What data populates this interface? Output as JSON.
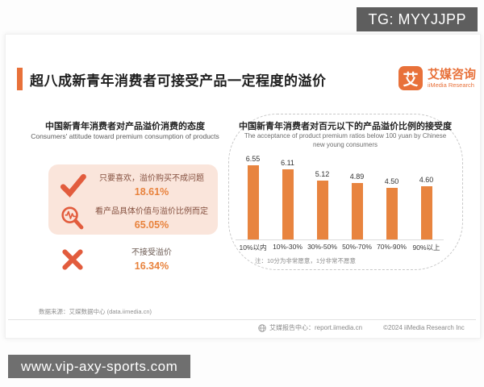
{
  "page": {
    "tg_badge": "TG: MYYJJPP",
    "watermark": "www.vip-axy-sports.com"
  },
  "header": {
    "title": "超八成新青年消费者可接受产品一定程度的溢价",
    "logo": {
      "glyph": "艾",
      "name_cn": "艾媒咨询",
      "name_en": "iiMedia Research"
    }
  },
  "left_panel": {
    "title": "中国新青年消费者对产品溢价消费的态度",
    "subtitle": "Consumers' attitude toward premium consumption of products",
    "items": [
      {
        "icon": "check-icon",
        "label": "只要喜欢，溢价购买不成问题",
        "value": "18.61%"
      },
      {
        "icon": "magnifier-pulse-icon",
        "label": "看产品具体价值与溢价比例而定",
        "value": "65.05%"
      },
      {
        "icon": "x-icon",
        "label": "不接受溢价",
        "value": "16.34%"
      }
    ],
    "source": "数据来源：艾媒数据中心 (data.iimedia.cn)"
  },
  "chart_data": {
    "type": "bar",
    "title": "中国新青年消费者对百元以下的产品溢价比例的接受度",
    "subtitle": "The acceptance of product premium ratios below 100 yuan by Chinese new young consumers",
    "categories": [
      "10%以内",
      "10%-30%",
      "30%-50%",
      "50%-70%",
      "70%-90%",
      "90%以上"
    ],
    "values": [
      6.55,
      6.11,
      5.12,
      4.89,
      4.5,
      4.6
    ],
    "value_labels": [
      "6.55",
      "6.11",
      "5.12",
      "4.89",
      "4.50",
      "4.60"
    ],
    "note": "注：10分为非常愿意，1分非常不愿意",
    "ylim": [
      0,
      7
    ],
    "grid": false,
    "legend": "none",
    "bar_color": "#e8843f"
  },
  "footer": {
    "report_center": "艾媒报告中心：report.iimedia.cn",
    "copyright": "©2024 iiMedia Research Inc"
  },
  "colors": {
    "brand_orange": "#e8713a",
    "bar_orange": "#e8843f",
    "pink_box": "#fae5db",
    "icon_orange": "#e25c3d",
    "tg_badge_bg": "#5e5e5e",
    "watermark_bg": "#6f6f6f"
  }
}
